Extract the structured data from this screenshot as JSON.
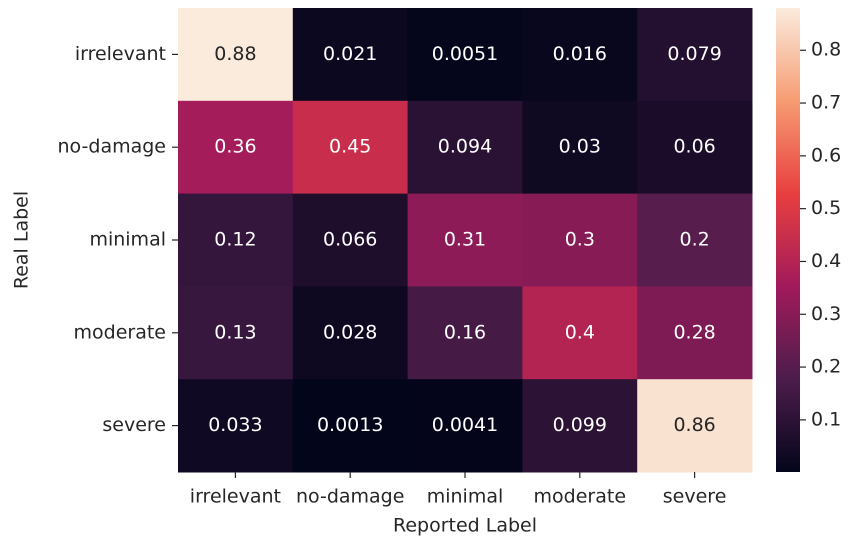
{
  "chart_data": {
    "type": "heatmap",
    "x_label": "Reported Label",
    "y_label": "Real Label",
    "x_categories": [
      "irrelevant",
      "no-damage",
      "minimal",
      "moderate",
      "severe"
    ],
    "y_categories": [
      "irrelevant",
      "no-damage",
      "minimal",
      "moderate",
      "severe"
    ],
    "values": [
      [
        0.88,
        0.021,
        0.0051,
        0.016,
        0.079
      ],
      [
        0.36,
        0.45,
        0.094,
        0.03,
        0.06
      ],
      [
        0.12,
        0.066,
        0.31,
        0.3,
        0.2
      ],
      [
        0.13,
        0.028,
        0.16,
        0.4,
        0.28
      ],
      [
        0.033,
        0.0013,
        0.0041,
        0.099,
        0.86
      ]
    ],
    "clim": [
      0.0013,
      0.88
    ],
    "cticks": [
      0.1,
      0.2,
      0.3,
      0.4,
      0.5,
      0.6,
      0.7,
      0.8
    ],
    "colormap": [
      "#03051a",
      "#4c1d4b",
      "#a11a5b",
      "#e83f3f",
      "#f69c73",
      "#faebdd"
    ]
  }
}
